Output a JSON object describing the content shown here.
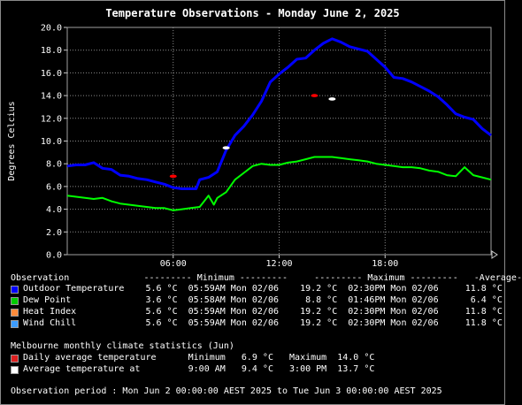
{
  "title": "Temperature Observations - Monday June 2, 2025",
  "chart_data": {
    "type": "line",
    "ylabel": "Degrees Celcius",
    "ylim": [
      0,
      20
    ],
    "y_ticks": [
      "0.0",
      "2.0",
      "4.0",
      "6.0",
      "8.0",
      "10.0",
      "12.0",
      "14.0",
      "16.0",
      "18.0",
      "20.0"
    ],
    "xlim": [
      0,
      24
    ],
    "x_ticks": [
      {
        "h": 6,
        "label": "06:00"
      },
      {
        "h": 12,
        "label": "12:00"
      },
      {
        "h": 18,
        "label": "18:00"
      }
    ],
    "grid": true,
    "series": [
      {
        "name": "Outdoor Temperature",
        "color": "#0000ff",
        "x": [
          0,
          0.5,
          1,
          1.5,
          2,
          2.5,
          3,
          3.5,
          4,
          4.5,
          5,
          5.5,
          6,
          6.5,
          7,
          7.3,
          7.5,
          8,
          8.5,
          9,
          9.5,
          10,
          10.5,
          11,
          11.5,
          12,
          12.5,
          13,
          13.5,
          14,
          14.5,
          15,
          15.5,
          16,
          16.5,
          17,
          17.5,
          18,
          18.5,
          19,
          19.5,
          20,
          20.5,
          21,
          21.5,
          22,
          22.5,
          23,
          23.5,
          24
        ],
        "y": [
          7.8,
          7.9,
          7.9,
          8.1,
          7.6,
          7.5,
          7.0,
          6.9,
          6.7,
          6.6,
          6.4,
          6.2,
          5.9,
          5.8,
          5.8,
          5.8,
          6.6,
          6.8,
          7.3,
          9.2,
          10.5,
          11.3,
          12.3,
          13.5,
          15.2,
          15.9,
          16.5,
          17.2,
          17.3,
          18.0,
          18.6,
          19.0,
          18.7,
          18.3,
          18.1,
          17.9,
          17.2,
          16.5,
          15.6,
          15.5,
          15.2,
          14.8,
          14.4,
          13.9,
          13.2,
          12.4,
          12.1,
          11.9,
          11.1,
          10.5
        ]
      },
      {
        "name": "Dew Point",
        "color": "#00ff00",
        "x": [
          0,
          0.5,
          1,
          1.5,
          2,
          2.5,
          3,
          3.5,
          4,
          4.5,
          5,
          5.5,
          6,
          6.5,
          7,
          7.5,
          8,
          8.3,
          8.5,
          9,
          9.5,
          10,
          10.5,
          11,
          11.5,
          12,
          12.5,
          13,
          13.5,
          14,
          14.5,
          15,
          15.5,
          16,
          16.5,
          17,
          17.5,
          18,
          18.5,
          19,
          19.5,
          20,
          20.5,
          21,
          21.5,
          22,
          22.5,
          23,
          23.5,
          24
        ],
        "y": [
          5.2,
          5.1,
          5.0,
          4.9,
          5.0,
          4.7,
          4.5,
          4.4,
          4.3,
          4.2,
          4.1,
          4.1,
          3.9,
          4.0,
          4.1,
          4.2,
          5.2,
          4.4,
          5.0,
          5.5,
          6.6,
          7.2,
          7.8,
          8.0,
          7.9,
          7.9,
          8.1,
          8.2,
          8.4,
          8.6,
          8.6,
          8.6,
          8.5,
          8.4,
          8.3,
          8.2,
          8.0,
          7.9,
          7.8,
          7.7,
          7.7,
          7.6,
          7.4,
          7.3,
          7.0,
          6.9,
          7.7,
          7.0,
          6.8,
          6.6
        ]
      }
    ],
    "climate_markers": [
      {
        "name": "Daily average temperature",
        "color": "#ff0000",
        "x": 14.0,
        "y": 14.0
      },
      {
        "name": "Daily average temperature",
        "color": "#ff0000",
        "x": 6.0,
        "y": 6.9
      },
      {
        "name": "Average temperature at",
        "color": "#ffffff",
        "x": 15.0,
        "y": 13.7
      },
      {
        "name": "Average temperature at",
        "color": "#ffffff",
        "x": 9.0,
        "y": 9.4
      }
    ]
  },
  "legend": {
    "header": "Observation              --------- Minimum ---------     --------- Maximum ---------   -Average-",
    "rows": [
      {
        "color": "#0000ff",
        "text": "Outdoor Temperature    5.6 °C  05:59AM Mon 02/06    19.2 °C  02:30PM Mon 02/06     11.8 °C"
      },
      {
        "color": "#00cc00",
        "text": "Dew Point              3.6 °C  05:58AM Mon 02/06     8.8 °C  01:46PM Mon 02/06      6.4 °C"
      },
      {
        "color": "#ff8c3c",
        "text": "Heat Index             5.6 °C  05:59AM Mon 02/06    19.2 °C  02:30PM Mon 02/06     11.8 °C"
      },
      {
        "color": "#3c9cff",
        "text": "Wind Chill             5.6 °C  05:59AM Mon 02/06    19.2 °C  02:30PM Mon 02/06     11.8 °C"
      }
    ]
  },
  "climate": {
    "header": "Melbourne monthly climate statistics (Jun)",
    "rows": [
      {
        "color": "#dd2020",
        "text": "Daily average temperature      Minimum   6.9 °C   Maximum  14.0 °C"
      },
      {
        "color": "#ffffff",
        "text": "Average temperature at         9:00 AM   9.4 °C   3:00 PM  13.7 °C"
      }
    ]
  },
  "period": "Observation period : Mon Jun 2 00:00:00 AEST 2025 to Tue Jun 3 00:00:00 AEST 2025"
}
